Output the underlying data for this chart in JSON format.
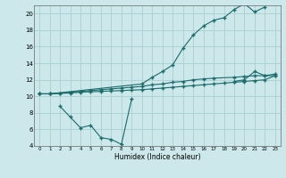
{
  "xlabel": "Humidex (Indice chaleur)",
  "bg_color": "#cce8ea",
  "grid_color": "#aacfd2",
  "line_color": "#1a6b6b",
  "xlim": [
    -0.5,
    23.5
  ],
  "ylim": [
    4,
    21
  ],
  "yticks": [
    4,
    6,
    8,
    10,
    12,
    14,
    16,
    18,
    20
  ],
  "xticks": [
    0,
    1,
    2,
    3,
    4,
    5,
    6,
    7,
    8,
    9,
    10,
    11,
    12,
    13,
    14,
    15,
    16,
    17,
    18,
    19,
    20,
    21,
    22,
    23
  ],
  "line_top_x": [
    0,
    1,
    10,
    11,
    12,
    13,
    14,
    15,
    16,
    17,
    18,
    19,
    20,
    21,
    22
  ],
  "line_top_y": [
    10.3,
    10.3,
    11.5,
    12.3,
    13.0,
    13.8,
    15.8,
    17.4,
    18.5,
    19.2,
    19.5,
    20.5,
    21.2,
    20.2,
    20.8
  ],
  "line_mid_x": [
    0,
    1,
    2,
    3,
    4,
    5,
    6,
    7,
    8,
    9,
    10,
    11,
    12,
    13,
    14,
    15,
    16,
    17,
    19,
    20,
    21,
    22,
    23
  ],
  "line_mid_y": [
    10.3,
    10.3,
    10.4,
    10.5,
    10.6,
    10.7,
    10.8,
    10.9,
    11.0,
    11.1,
    11.2,
    11.4,
    11.5,
    11.7,
    11.8,
    12.0,
    12.1,
    12.2,
    12.3,
    12.4,
    12.5,
    12.5,
    12.7
  ],
  "line_bot_x": [
    0,
    1,
    2,
    3,
    4,
    5,
    6,
    7,
    8,
    9,
    10,
    11,
    12,
    13,
    14,
    15,
    16,
    17,
    18,
    19,
    20,
    21,
    22,
    23
  ],
  "line_bot_y": [
    10.3,
    10.3,
    10.35,
    10.4,
    10.5,
    10.55,
    10.6,
    10.65,
    10.7,
    10.75,
    10.8,
    10.9,
    11.0,
    11.1,
    11.2,
    11.3,
    11.4,
    11.5,
    11.6,
    11.7,
    11.8,
    11.9,
    12.0,
    12.5
  ],
  "line_dip_x": [
    2,
    3,
    4,
    5,
    6,
    7,
    8,
    9
  ],
  "line_dip_y": [
    8.8,
    7.5,
    6.2,
    6.5,
    5.0,
    4.8,
    4.2,
    9.7
  ],
  "line_dip2_x": [
    19,
    20,
    21,
    22,
    23
  ],
  "line_dip2_y": [
    11.8,
    12.0,
    13.0,
    12.5,
    12.5
  ]
}
